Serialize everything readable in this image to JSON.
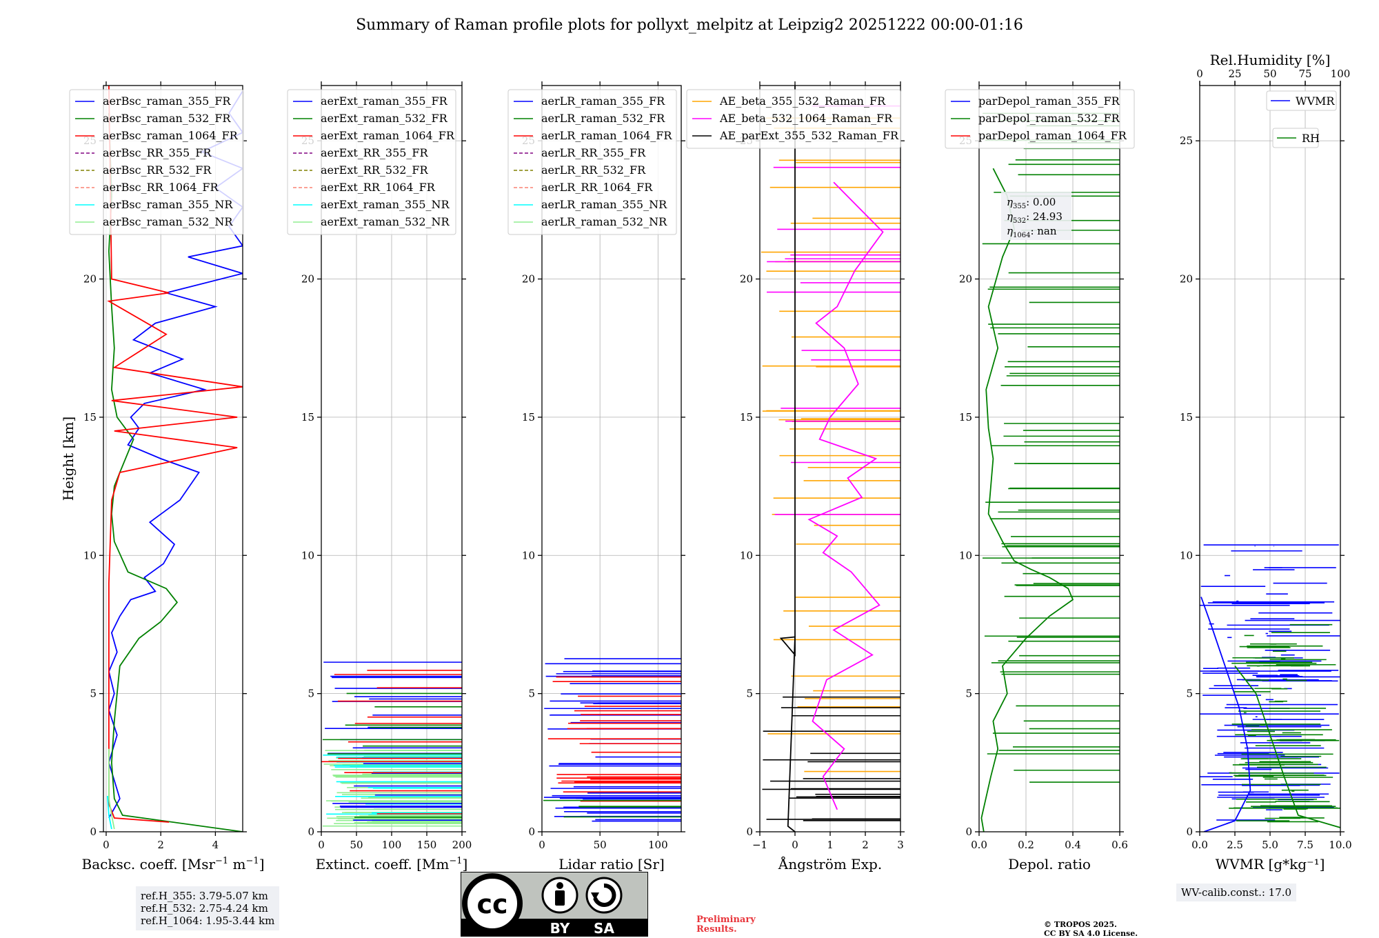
{
  "title": "Summary of Raman profile plots for pollyxt_melpitz at Leipzig2 20251222 00:00-01:16",
  "colors": {
    "blue": "#0000ff",
    "green": "#008000",
    "red": "#ff0000",
    "purple": "#800080",
    "olive": "#808000",
    "salmon": "#fa8072",
    "cyan": "#00ffff",
    "lightgreen": "#90ee90",
    "orange": "#ffa500",
    "magenta": "#ff00ff",
    "black": "#000000"
  },
  "chart_data": [
    {
      "type": "line",
      "name": "backscatter",
      "xlabel_main": "Backsc. coeff. [Msr",
      "xlabel_sup1": "−1",
      "xlabel_mid": " m",
      "xlabel_sup2": "−1",
      "xlabel_end": "]",
      "ylabel": "Height [km]",
      "xlim": [
        -0.1,
        5
      ],
      "ylim": [
        0,
        27
      ],
      "xticks": [
        0,
        2,
        4
      ],
      "xtick_labels": [
        "0",
        "2",
        "4"
      ],
      "yticks": [
        0,
        5,
        10,
        15,
        20,
        25
      ],
      "ytick_labels": [
        "0",
        "5",
        "10",
        "15",
        "20",
        "25"
      ],
      "legend": [
        "aerBsc_raman_355_FR",
        "aerBsc_raman_532_FR",
        "aerBsc_raman_1064_FR",
        "aerBsc_RR_355_FR",
        "aerBsc_RR_532_FR",
        "aerBsc_RR_1064_FR",
        "aerBsc_raman_355_NR",
        "aerBsc_raman_532_NR"
      ],
      "series": [
        {
          "name": "aerBsc_raman_355_FR",
          "color": "blue",
          "x": [
            0.1,
            0.5,
            0.1,
            0.4,
            0.1,
            0.3,
            0.1,
            0.4,
            0.2,
            0.5,
            0.9,
            1.8,
            1.4,
            2.1,
            2.5,
            1.6,
            2.7,
            3.4,
            2.0,
            0.8,
            1.2,
            0.9,
            1.4,
            3.6,
            1.6,
            2.8,
            1.0,
            1.8,
            4.0,
            2.2,
            5.0,
            3.0,
            5.0,
            4.5,
            5.0,
            4.0,
            5.0,
            3.5,
            5.0,
            4.5,
            5.0
          ],
          "y": [
            0.5,
            1.2,
            2.5,
            3.5,
            4.4,
            5.0,
            5.8,
            6.5,
            7.2,
            7.8,
            8.4,
            8.7,
            9.2,
            9.7,
            10.4,
            11.2,
            12.0,
            13.0,
            13.5,
            14.0,
            14.6,
            15.0,
            15.5,
            16.0,
            16.6,
            17.1,
            17.8,
            18.4,
            19.0,
            19.5,
            20.2,
            20.8,
            21.2,
            21.9,
            22.6,
            23.3,
            24.0,
            24.6,
            25.3,
            26.0,
            26.8
          ]
        },
        {
          "name": "aerBsc_raman_532_FR",
          "color": "green",
          "x": [
            5.0,
            0.6,
            0.3,
            0.2,
            0.3,
            0.5,
            1.2,
            2.0,
            2.6,
            2.2,
            0.8,
            0.3,
            0.2,
            0.3,
            0.5,
            1.0,
            0.4,
            0.2,
            0.3,
            0.2,
            0.1,
            0.2,
            0.1
          ],
          "y": [
            0.0,
            0.6,
            1.2,
            2.5,
            4.0,
            6.0,
            7.0,
            7.6,
            8.3,
            8.8,
            9.4,
            10.5,
            11.5,
            12.5,
            13.0,
            14.2,
            15.0,
            16.0,
            17.5,
            19.0,
            21.0,
            23.0,
            26.0
          ]
        },
        {
          "name": "aerBsc_raman_1064_FR",
          "color": "red",
          "x": [
            2.3,
            0.3,
            0.1,
            0.1,
            0.1,
            0.1,
            0.2,
            0.5,
            4.8,
            0.3,
            4.8,
            0.2,
            5.0,
            0.3,
            2.2,
            0.1,
            2.3,
            0.2,
            0.1
          ],
          "y": [
            0.35,
            0.5,
            1.0,
            3.0,
            6.0,
            9.0,
            12.0,
            13.0,
            13.9,
            14.5,
            15.0,
            15.6,
            16.1,
            16.8,
            18.0,
            19.2,
            19.5,
            20.0,
            27.0
          ]
        },
        {
          "name": "aerBsc_raman_532_NR",
          "color": "lightgreen",
          "x": [
            0.3,
            0.2,
            0.1,
            0.1
          ],
          "y": [
            0.1,
            0.6,
            1.2,
            3.0
          ]
        },
        {
          "name": "aerBsc_raman_355_NR",
          "color": "cyan",
          "x": [
            0.2,
            0.1,
            0.05
          ],
          "y": [
            0.1,
            0.6,
            1.3
          ]
        }
      ]
    },
    {
      "type": "line",
      "name": "extinction",
      "xlabel_main": "Extinct. coeff. [Mm",
      "xlabel_sup1": "−1",
      "xlabel_end": "]",
      "xlim": [
        0,
        200
      ],
      "ylim": [
        0,
        27
      ],
      "xticks": [
        0,
        50,
        100,
        150,
        200
      ],
      "xtick_labels": [
        "0",
        "50",
        "100",
        "150",
        "200"
      ],
      "yticks": [
        0,
        5,
        10,
        15,
        20,
        25
      ],
      "ytick_labels": [
        "0",
        "5",
        "10",
        "15",
        "20",
        "25"
      ],
      "legend": [
        "aerExt_raman_355_FR",
        "aerExt_raman_532_FR",
        "aerExt_raman_1064_FR",
        "aerExt_RR_355_FR",
        "aerExt_RR_532_FR",
        "aerExt_RR_1064_FR",
        "aerExt_raman_355_NR",
        "aerExt_raman_532_NR"
      ],
      "hbands": [
        {
          "color": "lightgreen",
          "from": 0.2,
          "to": 3.0,
          "density": 55
        },
        {
          "color": "cyan",
          "from": 0.5,
          "to": 2.8,
          "density": 14
        },
        {
          "color": "blue",
          "from": 0.3,
          "to": 6.3,
          "density": 22
        },
        {
          "color": "red",
          "from": 0.4,
          "to": 5.9,
          "density": 12
        },
        {
          "color": "green",
          "from": 0.5,
          "to": 5.4,
          "density": 8
        }
      ]
    },
    {
      "type": "line",
      "name": "lidar_ratio",
      "xlabel": "Lidar ratio [Sr]",
      "xlim": [
        0,
        120
      ],
      "ylim": [
        0,
        27
      ],
      "xticks": [
        0,
        50,
        100
      ],
      "xtick_labels": [
        "0",
        "50",
        "100"
      ],
      "yticks": [
        0,
        5,
        10,
        15,
        20,
        25
      ],
      "ytick_labels": [
        "0",
        "5",
        "10",
        "15",
        "20",
        "25"
      ],
      "legend": [
        "aerLR_raman_355_FR",
        "aerLR_raman_532_FR",
        "aerLR_raman_1064_FR",
        "aerLR_RR_355_FR",
        "aerLR_RR_532_FR",
        "aerLR_RR_1064_FR",
        "aerLR_raman_355_NR",
        "aerLR_raman_532_NR"
      ],
      "hbands": [
        {
          "color": "blue",
          "from": 0.2,
          "to": 6.3,
          "density": 40
        },
        {
          "color": "red",
          "from": 0.3,
          "to": 5.6,
          "density": 22
        },
        {
          "color": "green",
          "from": 0.5,
          "to": 1.2,
          "density": 4
        }
      ]
    },
    {
      "type": "line",
      "name": "angstrom",
      "xlabel": "Ångström Exp.",
      "xlim": [
        -1,
        3
      ],
      "ylim": [
        0,
        27
      ],
      "xticks": [
        -1,
        0,
        1,
        2,
        3
      ],
      "xtick_labels": [
        "−1",
        "0",
        "1",
        "2",
        "3"
      ],
      "yticks": [
        0,
        5,
        10,
        15,
        20,
        25
      ],
      "ytick_labels": [
        "0",
        "5",
        "10",
        "15",
        "20",
        "25"
      ],
      "legend": [
        "AE_beta_355_532_Raman_FR",
        "AE_beta_532_1064_Raman_FR",
        "AE_parExt_355_532_Raman_FR"
      ],
      "series": [
        {
          "name": "AE_beta_532_1064_Raman_FR",
          "color": "magenta",
          "x": [
            1.2,
            0.8,
            1.4,
            0.5,
            0.9,
            2.2,
            1.1,
            2.4,
            2.0,
            1.6,
            0.8,
            1.2,
            0.4,
            1.9,
            1.5,
            2.3,
            0.7,
            1.0,
            1.8,
            1.4,
            0.6,
            1.2,
            1.7,
            2.5,
            1.1
          ],
          "y": [
            0.8,
            2.0,
            3.0,
            4.0,
            5.5,
            6.4,
            7.3,
            8.2,
            8.8,
            9.4,
            10.1,
            10.7,
            11.3,
            12.1,
            12.8,
            13.5,
            14.2,
            15.0,
            16.2,
            17.5,
            18.4,
            19.0,
            20.3,
            21.7,
            23.5
          ]
        },
        {
          "name": "AE_parExt_355_532_Raman_FR",
          "color": "black",
          "x": [
            0.0,
            0.0,
            0.0,
            -0.4,
            0.0,
            -0.2,
            0.0
          ],
          "y": [
            27.0,
            10.0,
            6.4,
            7.0,
            7.05,
            0.2,
            0.0
          ]
        }
      ],
      "hbands": [
        {
          "color": "orange",
          "from": 0.4,
          "to": 26.0,
          "density": 38
        },
        {
          "color": "magenta",
          "from": 11.0,
          "to": 27.0,
          "density": 14
        },
        {
          "color": "black",
          "from": 0.2,
          "to": 5.0,
          "density": 18
        }
      ]
    },
    {
      "type": "line",
      "name": "depolarization",
      "xlabel": "Depol. ratio",
      "xlim": [
        0,
        0.6
      ],
      "ylim": [
        0,
        27
      ],
      "xticks": [
        0,
        0.2,
        0.4,
        0.6
      ],
      "xtick_labels": [
        "0.0",
        "0.2",
        "0.4",
        "0.6"
      ],
      "yticks": [
        0,
        5,
        10,
        15,
        20,
        25
      ],
      "ytick_labels": [
        "0",
        "5",
        "10",
        "15",
        "20",
        "25"
      ],
      "legend": [
        "parDepol_raman_355_FR",
        "parDepol_raman_532_FR",
        "parDepol_raman_1064_FR"
      ],
      "eta": [
        {
          "sub": "355",
          "value": ": 0.00"
        },
        {
          "sub": "532",
          "value": ": 24.93"
        },
        {
          "sub": "1064",
          "value": ": nan"
        }
      ],
      "series": [
        {
          "name": "parDepol_raman_532_FR",
          "color": "green",
          "x": [
            0.02,
            0.01,
            0.05,
            0.08,
            0.06,
            0.12,
            0.1,
            0.2,
            0.3,
            0.4,
            0.38,
            0.3,
            0.22,
            0.15,
            0.1,
            0.04,
            0.05,
            0.06,
            0.04,
            0.03,
            0.08,
            0.04,
            0.1,
            0.15,
            0.12,
            0.06
          ],
          "y": [
            0.0,
            0.5,
            2.0,
            3.0,
            4.0,
            5.0,
            6.0,
            7.0,
            7.8,
            8.4,
            8.8,
            9.2,
            9.5,
            9.8,
            10.5,
            11.5,
            12.5,
            13.5,
            14.6,
            16.0,
            17.5,
            19.0,
            20.8,
            21.8,
            23.0,
            24.0
          ]
        }
      ],
      "hbands": [
        {
          "color": "green",
          "from": 1.7,
          "to": 26.8,
          "density": 70
        }
      ]
    },
    {
      "type": "line",
      "name": "water_vapor",
      "xlabel": "WVMR [g*kg⁻¹]",
      "top_axis_label": "Rel.Humidity [%]",
      "xlim": [
        0,
        10
      ],
      "ylim": [
        0,
        27
      ],
      "xticks": [
        0,
        2.5,
        5,
        7.5,
        10
      ],
      "xtick_labels": [
        "0.0",
        "2.5",
        "5.0",
        "7.5",
        "10.0"
      ],
      "top_xticks": [
        0,
        25,
        50,
        75,
        100
      ],
      "top_xtick_labels": [
        "0",
        "25",
        "50",
        "75",
        "100"
      ],
      "yticks": [
        0,
        5,
        10,
        15,
        20,
        25
      ],
      "ytick_labels": [
        "0",
        "5",
        "10",
        "15",
        "20",
        "25"
      ],
      "legend": [
        "WVMR",
        "RH"
      ],
      "wv_calib": "WV-calib.const.: 17.0",
      "hbands": [
        {
          "color": "blue",
          "from": 0.3,
          "to": 10.5,
          "density": 95,
          "xmin": 0.0,
          "xmax": 10
        },
        {
          "color": "green",
          "from": 0.3,
          "to": 7.5,
          "density": 80,
          "xmin": 2.0,
          "xmax": 10
        }
      ],
      "series": [
        {
          "name": "WVMR",
          "color": "blue",
          "x": [
            0.3,
            2.5,
            3.6,
            3.4,
            2.8,
            1.8,
            0.8,
            0.1
          ],
          "y": [
            0.0,
            0.4,
            1.5,
            3.0,
            4.5,
            6.0,
            7.5,
            8.5
          ]
        },
        {
          "name": "RH",
          "color": "green",
          "x": [
            10.0,
            7.0,
            6.0,
            5.0,
            4.0,
            2.5
          ],
          "y": [
            0.15,
            0.6,
            2.0,
            3.5,
            5.0,
            6.0
          ]
        }
      ]
    }
  ],
  "ref_heights": [
    "ref.H_355: 3.79-5.07 km",
    "ref.H_532: 2.75-4.24 km",
    "ref.H_1064: 1.95-3.44 km"
  ],
  "preliminary": [
    "Preliminary",
    "Results."
  ],
  "copyright": [
    "© TROPOS 2025.",
    "CC BY SA 4.0 License."
  ],
  "license_badge": {
    "symbol": "cc",
    "labels": [
      "BY",
      "SA"
    ]
  }
}
